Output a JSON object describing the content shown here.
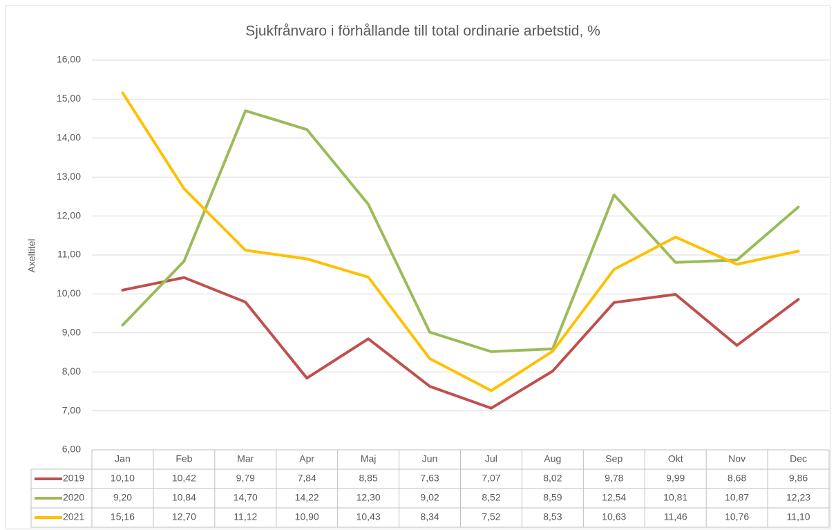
{
  "chart_data": {
    "type": "line",
    "title": "Sjukfrånvaro i förhållande till total ordinarie arbetstid, %",
    "ylabel": "Axeltitel",
    "categories": [
      "Jan",
      "Feb",
      "Mar",
      "Apr",
      "Maj",
      "Jun",
      "Jul",
      "Aug",
      "Sep",
      "Okt",
      "Nov",
      "Dec"
    ],
    "series": [
      {
        "name": "2019",
        "color": "#c0504d",
        "values": [
          10.1,
          10.42,
          9.79,
          7.84,
          8.85,
          7.63,
          7.07,
          8.02,
          9.78,
          9.99,
          8.68,
          9.86
        ],
        "value_labels": [
          "10,10",
          "10,42",
          "9,79",
          "7,84",
          "8,85",
          "7,63",
          "7,07",
          "8,02",
          "9,78",
          "9,99",
          "8,68",
          "9,86"
        ]
      },
      {
        "name": "2020",
        "color": "#9bbb59",
        "values": [
          9.2,
          10.84,
          14.7,
          14.22,
          12.3,
          9.02,
          8.52,
          8.59,
          12.54,
          10.81,
          10.87,
          12.23
        ],
        "value_labels": [
          "9,20",
          "10,84",
          "14,70",
          "14,22",
          "12,30",
          "9,02",
          "8,52",
          "8,59",
          "12,54",
          "10,81",
          "10,87",
          "12,23"
        ]
      },
      {
        "name": "2021",
        "color": "#ffc000",
        "values": [
          15.16,
          12.7,
          11.12,
          10.9,
          10.43,
          8.34,
          7.52,
          8.53,
          10.63,
          11.46,
          10.76,
          11.1
        ],
        "value_labels": [
          "15,16",
          "12,70",
          "11,12",
          "10,90",
          "10,43",
          "8,34",
          "7,52",
          "8,53",
          "10,63",
          "11,46",
          "10,76",
          "11,10"
        ]
      }
    ],
    "ylim": [
      6,
      16
    ],
    "yticks": [
      {
        "value": 6,
        "label": "6,00"
      },
      {
        "value": 7,
        "label": "7,00"
      },
      {
        "value": 8,
        "label": "8,00"
      },
      {
        "value": 9,
        "label": "9,00"
      },
      {
        "value": 10,
        "label": "10,00"
      },
      {
        "value": 11,
        "label": "11,00"
      },
      {
        "value": 12,
        "label": "12,00"
      },
      {
        "value": 13,
        "label": "13,00"
      },
      {
        "value": 14,
        "label": "14,00"
      },
      {
        "value": 15,
        "label": "15,00"
      },
      {
        "value": 16,
        "label": "16,00"
      }
    ],
    "grid": true
  }
}
